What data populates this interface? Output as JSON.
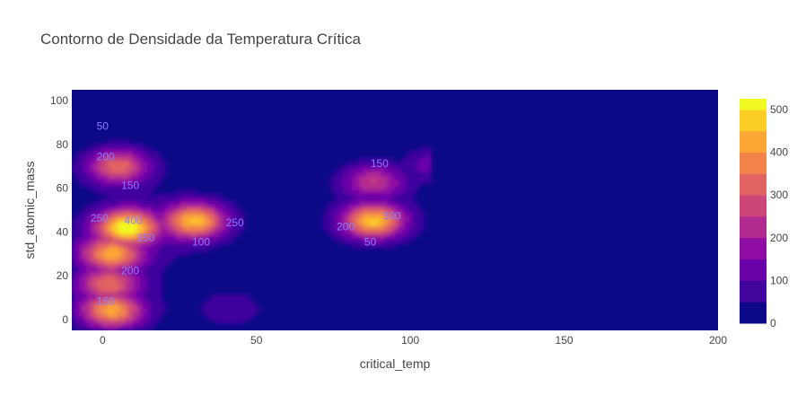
{
  "chart_data": {
    "type": "heatmap",
    "subtype": "density-contour",
    "title": "Contorno de Densidade da Temperatura Crítica",
    "xlabel": "critical_temp",
    "ylabel": "std_atomic_mass",
    "xlim": [
      -10,
      200
    ],
    "ylim": [
      -5,
      105
    ],
    "x_ticks": [
      0,
      50,
      100,
      150,
      200
    ],
    "y_ticks": [
      0,
      20,
      40,
      60,
      80,
      100
    ],
    "colorbar": {
      "range": [
        0,
        525
      ],
      "ticks": [
        0,
        100,
        200,
        300,
        400,
        500
      ],
      "levels": [
        0,
        50,
        100,
        150,
        200,
        250,
        300,
        350,
        400,
        450,
        500,
        525
      ],
      "colors": [
        "#0d0887",
        "#41049d",
        "#6a00a8",
        "#8f0da4",
        "#b12a90",
        "#cc4778",
        "#e16462",
        "#f2844b",
        "#fca636",
        "#fcce25",
        "#f0f921"
      ]
    },
    "contour_labels": [
      {
        "text": "50",
        "x": 0,
        "y": 88
      },
      {
        "text": "200",
        "x": 1,
        "y": 74
      },
      {
        "text": "150",
        "x": 9,
        "y": 61
      },
      {
        "text": "250",
        "x": -1,
        "y": 46
      },
      {
        "text": "400",
        "x": 10,
        "y": 45
      },
      {
        "text": "350",
        "x": 14,
        "y": 37
      },
      {
        "text": "100",
        "x": 32,
        "y": 35
      },
      {
        "text": "250",
        "x": 43,
        "y": 44
      },
      {
        "text": "200",
        "x": 9,
        "y": 22
      },
      {
        "text": "150",
        "x": 1,
        "y": 8
      },
      {
        "text": "150",
        "x": 90,
        "y": 71
      },
      {
        "text": "300",
        "x": 94,
        "y": 47
      },
      {
        "text": "200",
        "x": 79,
        "y": 42
      },
      {
        "text": "50",
        "x": 87,
        "y": 35
      }
    ],
    "density_clusters": [
      {
        "x": 8,
        "y": 42,
        "peak": 480
      },
      {
        "x": 30,
        "y": 45,
        "peak": 410
      },
      {
        "x": 88,
        "y": 45,
        "peak": 430
      },
      {
        "x": 5,
        "y": 70,
        "peak": 310
      },
      {
        "x": 3,
        "y": 30,
        "peak": 360
      },
      {
        "x": 3,
        "y": 4,
        "peak": 380
      },
      {
        "x": 2,
        "y": 16,
        "peak": 280
      },
      {
        "x": 88,
        "y": 63,
        "peak": 220
      },
      {
        "x": 108,
        "y": 71,
        "peak": 110
      },
      {
        "x": 42,
        "y": 5,
        "peak": 90
      }
    ]
  }
}
